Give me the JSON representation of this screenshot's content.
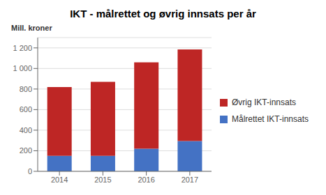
{
  "chart_data": {
    "type": "bar",
    "title": "IKT - målrettet og øvrig innsats per år",
    "ylabel": "Mill. kroner",
    "categories": [
      "2014",
      "2015",
      "2016",
      "2017"
    ],
    "series": [
      {
        "name": "Målrettet IKT-innsats",
        "color": "#4472C4",
        "values": [
          150,
          150,
          220,
          295
        ]
      },
      {
        "name": "Øvrig IKT-innsats",
        "color": "#BE2625",
        "values": [
          670,
          720,
          840,
          890
        ]
      }
    ],
    "stacked": true,
    "ylim": [
      0,
      1300
    ],
    "yticks": [
      0,
      200,
      400,
      600,
      800,
      {
        "value": 1000,
        "label": "1 000"
      },
      {
        "value": 1200,
        "label": "1 200"
      }
    ],
    "grid": true,
    "legend": "right"
  }
}
